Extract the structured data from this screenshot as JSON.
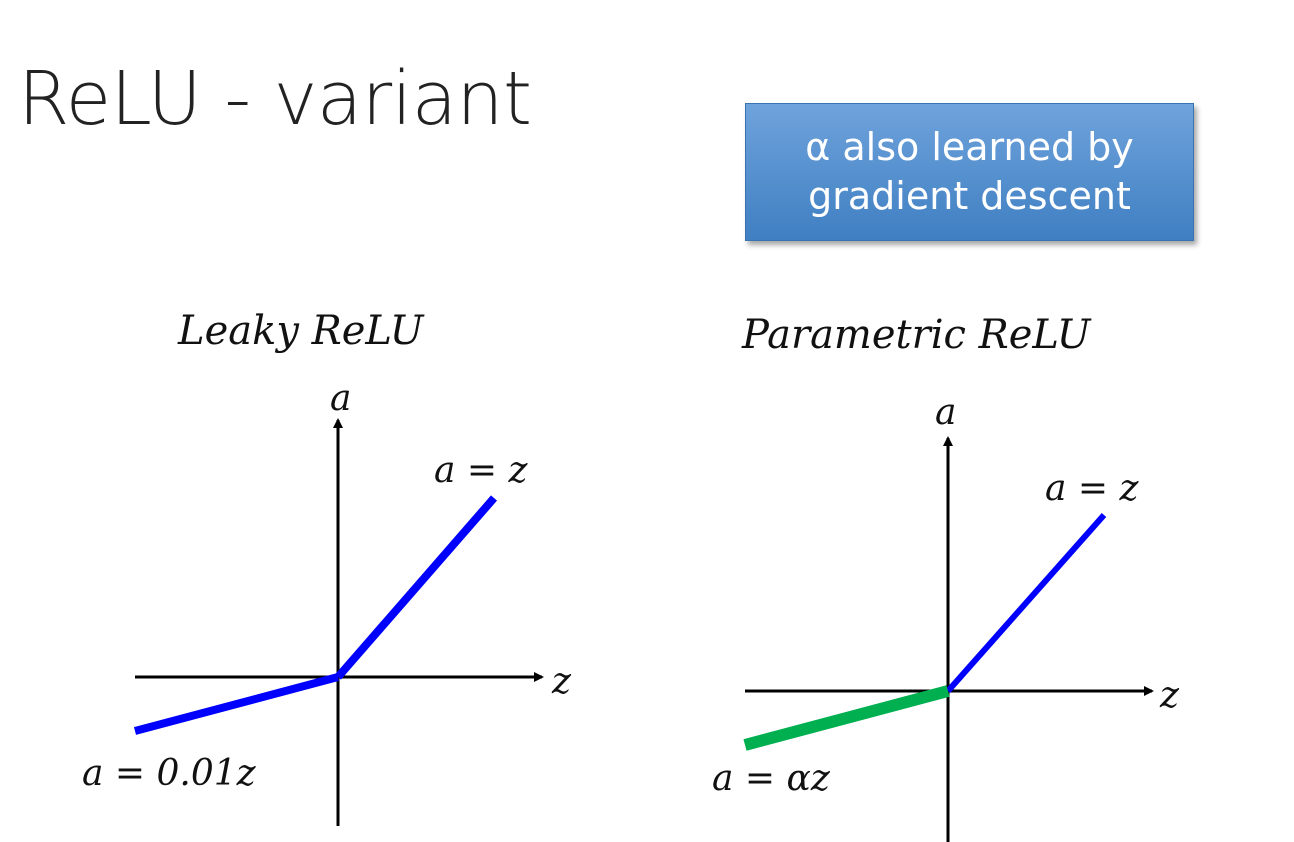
{
  "title": "ReLU - variant",
  "callout": {
    "line1": "α also learned by",
    "line2": "gradient descent",
    "bg_color": "#5b93d3"
  },
  "leaky": {
    "title": "Leaky ReLU",
    "y_axis_label": "a",
    "x_axis_label": "z",
    "positive_label": "a = z",
    "negative_label": "a = 0.01z",
    "positive_color": "#0000ff",
    "negative_color": "#0000ff"
  },
  "parametric": {
    "title": "Parametric ReLU",
    "y_axis_label": "a",
    "x_axis_label": "z",
    "positive_label": "a = z",
    "negative_label": "a = αz",
    "positive_color": "#0000ff",
    "negative_color": "#00b050"
  }
}
